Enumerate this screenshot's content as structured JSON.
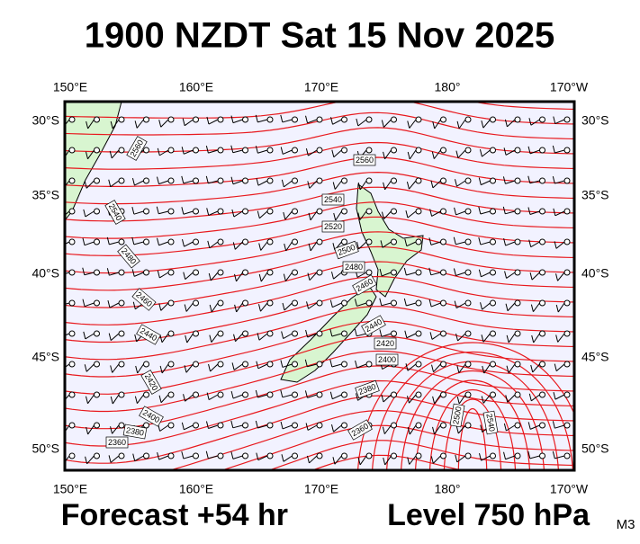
{
  "title": "1900 NZDT Sat 15 Nov 2025",
  "lon_ticks": [
    "150°E",
    "160°E",
    "170°E",
    "180°",
    "170°W"
  ],
  "lat_ticks": [
    "30°S",
    "35°S",
    "40°S",
    "45°S",
    "50°S"
  ],
  "contour_labels": [
    "2560",
    "2560",
    "2540",
    "2520",
    "2500",
    "2480",
    "2460",
    "2440",
    "2420",
    "2400",
    "2380",
    "2360",
    "2540",
    "2480",
    "2460",
    "2440",
    "2420",
    "2400",
    "2380",
    "2360",
    "2500",
    "2540"
  ],
  "footer_left": "Forecast +54 hr",
  "footer_right": "Level 750 hPa",
  "code": "M3"
}
